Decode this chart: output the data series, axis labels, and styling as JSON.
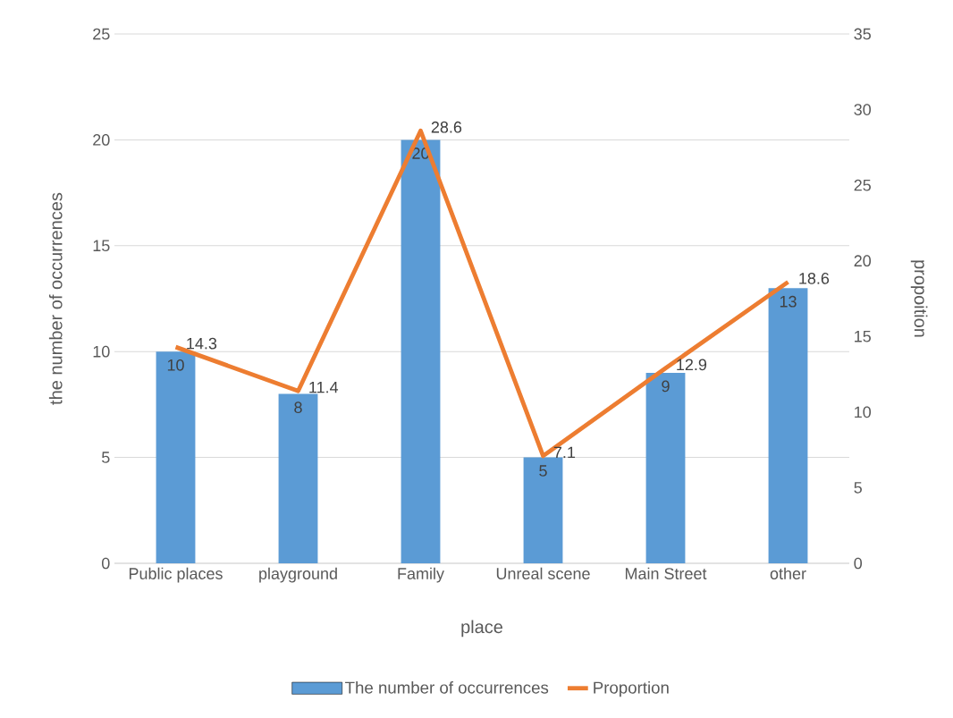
{
  "chart_data": {
    "type": "bar",
    "xlabel": "place",
    "ylabel": "the number of occurrences",
    "y2label": "propoition",
    "categories": [
      "Public places",
      "playground",
      "Family",
      "Unreal scene",
      "Main Street",
      "other"
    ],
    "series": [
      {
        "name": "The number of occurrences",
        "color": "#5b9bd5",
        "values": [
          10,
          8,
          20,
          5,
          9,
          13
        ]
      },
      {
        "name": "Proportion",
        "type": "line",
        "axis": "y2",
        "color": "#ed7d31",
        "values": [
          14.3,
          11.4,
          28.6,
          7.1,
          12.9,
          18.6
        ]
      }
    ],
    "ylim": [
      0,
      25
    ],
    "yticks": [
      0,
      5,
      10,
      15,
      20,
      25
    ],
    "y2lim": [
      0,
      35
    ],
    "y2ticks": [
      0,
      5,
      10,
      15,
      20,
      25,
      30,
      35
    ],
    "grid": "y",
    "legend": "bottom",
    "data_labels": true
  }
}
